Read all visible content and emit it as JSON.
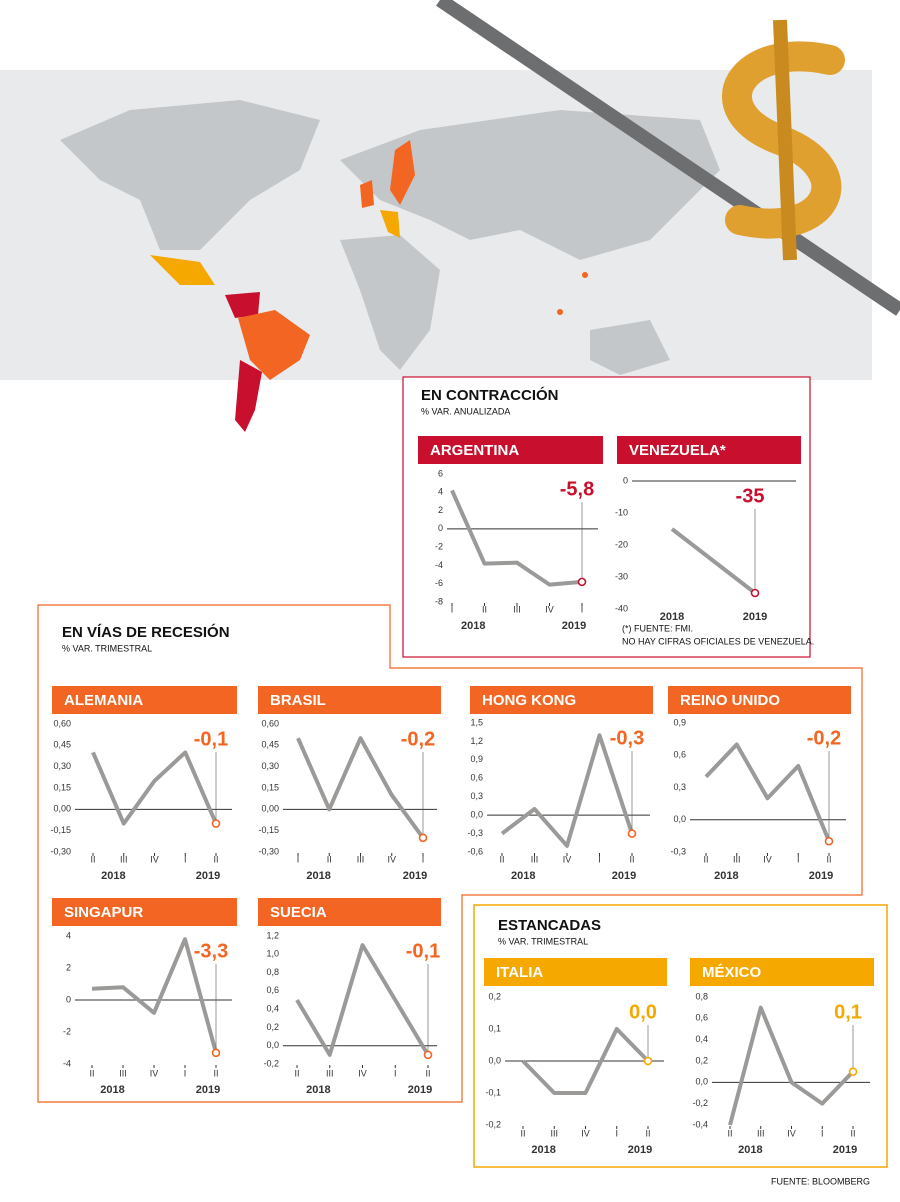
{
  "sections": [
    {
      "title": "EN CONTRACCIÓN",
      "subtitle": "% VAR. ANUALIZADA",
      "note": [
        "(*) FUENTE: FMI.",
        "NO HAY CIFRAS OFICIALES DE VENEZUELA."
      ]
    },
    {
      "title": "EN VÍAS DE RECESIÓN",
      "subtitle": "% VAR. TRIMESTRAL"
    },
    {
      "title": "ESTANCADAS",
      "subtitle": "% VAR. TRIMESTRAL"
    }
  ],
  "source": "FUENTE: BLOOMBERG",
  "chart_data": [
    {
      "type": "line",
      "title": "ARGENTINA",
      "color": "#c8102e",
      "categories": [
        "I",
        "II",
        "III",
        "IV",
        "I"
      ],
      "year_labels": [
        "2018",
        "2019"
      ],
      "values": [
        4.2,
        -3.8,
        -3.7,
        -6.1,
        -5.8
      ],
      "value_labels": [
        null,
        null,
        null,
        null,
        "-5,8"
      ],
      "ylim": [
        -8,
        6
      ],
      "yticks": [
        6,
        4,
        2,
        0,
        -2,
        -4,
        -6,
        -8
      ]
    },
    {
      "type": "line",
      "title": "VENEZUELA*",
      "color": "#c8102e",
      "categories": [
        "2018",
        "2019"
      ],
      "values": [
        -15,
        -35
      ],
      "value_labels": [
        null,
        "-35"
      ],
      "ylim": [
        -40,
        0
      ],
      "yticks": [
        0,
        -10,
        -20,
        -30,
        -40
      ]
    },
    {
      "type": "line",
      "title": "ALEMANIA",
      "color": "#f26522",
      "categories": [
        "II",
        "III",
        "IV",
        "I",
        "II"
      ],
      "year_labels": [
        "2018",
        "2019"
      ],
      "values": [
        0.4,
        -0.1,
        0.2,
        0.4,
        -0.1
      ],
      "value_labels": [
        null,
        null,
        null,
        null,
        "-0,1"
      ],
      "ylim": [
        -0.3,
        0.6
      ],
      "yticks": [
        {
          "value": 0.6,
          "label": "0,60"
        },
        {
          "value": 0.45,
          "label": "0,45"
        },
        {
          "value": 0.3,
          "label": "0,30"
        },
        {
          "value": 0.15,
          "label": "0,15"
        },
        {
          "value": 0,
          "label": "0,00"
        },
        {
          "value": -0.15,
          "label": "-0,15"
        },
        {
          "value": -0.3,
          "label": "-0,30"
        }
      ]
    },
    {
      "type": "line",
      "title": "BRASIL",
      "color": "#f26522",
      "categories": [
        "I",
        "II",
        "III",
        "IV",
        "I"
      ],
      "year_labels": [
        "2018",
        "2019"
      ],
      "values": [
        0.5,
        0.0,
        0.5,
        0.1,
        -0.2
      ],
      "value_labels": [
        null,
        null,
        null,
        null,
        "-0,2"
      ],
      "ylim": [
        -0.3,
        0.6
      ],
      "yticks": [
        {
          "value": 0.6,
          "label": "0,60"
        },
        {
          "value": 0.45,
          "label": "0,45"
        },
        {
          "value": 0.3,
          "label": "0,30"
        },
        {
          "value": 0.15,
          "label": "0,15"
        },
        {
          "value": 0,
          "label": "0,00"
        },
        {
          "value": -0.15,
          "label": "-0,15"
        },
        {
          "value": -0.3,
          "label": "-0,30"
        }
      ]
    },
    {
      "type": "line",
      "title": "HONG KONG",
      "color": "#f26522",
      "categories": [
        "II",
        "III",
        "IV",
        "I",
        "II"
      ],
      "year_labels": [
        "2018",
        "2019"
      ],
      "values": [
        -0.3,
        0.1,
        -0.5,
        1.3,
        -0.3
      ],
      "value_labels": [
        null,
        null,
        null,
        null,
        "-0,3"
      ],
      "ylim": [
        -0.6,
        1.5
      ],
      "yticks": [
        {
          "value": 1.5,
          "label": "1,5"
        },
        {
          "value": 1.2,
          "label": "1,2"
        },
        {
          "value": 0.9,
          "label": "0,9"
        },
        {
          "value": 0.6,
          "label": "0,6"
        },
        {
          "value": 0.3,
          "label": "0,3"
        },
        {
          "value": 0,
          "label": "0,0"
        },
        {
          "value": -0.3,
          "label": "-0,3"
        },
        {
          "value": -0.6,
          "label": "-0,6"
        }
      ]
    },
    {
      "type": "line",
      "title": "REINO UNIDO",
      "color": "#f26522",
      "categories": [
        "II",
        "III",
        "IV",
        "I",
        "II"
      ],
      "year_labels": [
        "2018",
        "2019"
      ],
      "values": [
        0.4,
        0.7,
        0.2,
        0.5,
        -0.2
      ],
      "value_labels": [
        null,
        null,
        null,
        null,
        "-0,2"
      ],
      "ylim": [
        -0.3,
        0.9
      ],
      "yticks": [
        {
          "value": 0.9,
          "label": "0,9"
        },
        {
          "value": 0.6,
          "label": "0,6"
        },
        {
          "value": 0.3,
          "label": "0,3"
        },
        {
          "value": 0,
          "label": "0,0"
        },
        {
          "value": -0.3,
          "label": "-0,3"
        }
      ]
    },
    {
      "type": "line",
      "title": "SINGAPUR",
      "color": "#f26522",
      "categories": [
        "II",
        "III",
        "IV",
        "I",
        "II"
      ],
      "year_labels": [
        "2018",
        "2019"
      ],
      "values": [
        0.7,
        0.8,
        -0.8,
        3.8,
        -3.3
      ],
      "value_labels": [
        null,
        null,
        null,
        null,
        "-3,3"
      ],
      "ylim": [
        -4,
        4
      ],
      "yticks": [
        4,
        2,
        0,
        -2,
        -4
      ]
    },
    {
      "type": "line",
      "title": "SUECIA",
      "color": "#f26522",
      "categories": [
        "II",
        "III",
        "IV",
        "I",
        "II"
      ],
      "year_labels": [
        "2018",
        "2019"
      ],
      "values": [
        0.5,
        -0.1,
        1.1,
        0.5,
        -0.1
      ],
      "value_labels": [
        null,
        null,
        null,
        null,
        "-0,1"
      ],
      "ylim": [
        -0.2,
        1.2
      ],
      "yticks": [
        {
          "value": 1.2,
          "label": "1,2"
        },
        {
          "value": 1.0,
          "label": "1,0"
        },
        {
          "value": 0.8,
          "label": "0,8"
        },
        {
          "value": 0.6,
          "label": "0,6"
        },
        {
          "value": 0.4,
          "label": "0,4"
        },
        {
          "value": 0.2,
          "label": "0,2"
        },
        {
          "value": 0,
          "label": "0,0"
        },
        {
          "value": -0.2,
          "label": "-0,2"
        }
      ]
    },
    {
      "type": "line",
      "title": "ITALIA",
      "color": "#f5a800",
      "categories": [
        "II",
        "III",
        "IV",
        "I",
        "II"
      ],
      "year_labels": [
        "2018",
        "2019"
      ],
      "values": [
        0.0,
        -0.1,
        -0.1,
        0.1,
        0.0
      ],
      "value_labels": [
        null,
        null,
        null,
        null,
        "0,0"
      ],
      "ylim": [
        -0.2,
        0.2
      ],
      "yticks": [
        {
          "value": 0.2,
          "label": "0,2"
        },
        {
          "value": 0.1,
          "label": "0,1"
        },
        {
          "value": 0,
          "label": "0,0"
        },
        {
          "value": -0.1,
          "label": "-0,1"
        },
        {
          "value": -0.2,
          "label": "-0,2"
        }
      ]
    },
    {
      "type": "line",
      "title": "MÉXICO",
      "color": "#f5a800",
      "categories": [
        "II",
        "III",
        "IV",
        "I",
        "II"
      ],
      "year_labels": [
        "2018",
        "2019"
      ],
      "values": [
        -0.4,
        0.7,
        0.0,
        -0.2,
        0.1
      ],
      "value_labels": [
        null,
        null,
        null,
        null,
        "0,1"
      ],
      "ylim": [
        -0.4,
        0.8
      ],
      "yticks": [
        {
          "value": 0.8,
          "label": "0,8"
        },
        {
          "value": 0.6,
          "label": "0,6"
        },
        {
          "value": 0.4,
          "label": "0,4"
        },
        {
          "value": 0.2,
          "label": "0,2"
        },
        {
          "value": 0,
          "label": "0,0"
        },
        {
          "value": -0.2,
          "label": "-0,2"
        },
        {
          "value": -0.4,
          "label": "-0,4"
        }
      ]
    }
  ]
}
